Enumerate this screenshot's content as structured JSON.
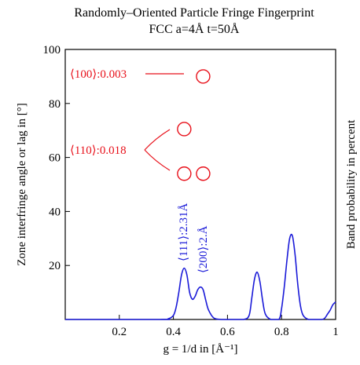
{
  "chart_data": {
    "type": "line",
    "title": "Randomly–Oriented Particle Fringe Fingerprint",
    "subtitle": "FCC a=4Å t=50Å",
    "xlabel": "g = 1/d in [Å⁻¹]",
    "ylabel": "Zone interfringe angle or lag in [°]",
    "y2label": "Band probability in percent",
    "xlim": [
      0,
      1
    ],
    "ylim": [
      0,
      100
    ],
    "xticks": [
      {
        "value": 0.2,
        "label": "0.2"
      },
      {
        "value": 0.4,
        "label": "0.4"
      },
      {
        "value": 0.6,
        "label": "0.6"
      },
      {
        "value": 0.8,
        "label": "0.8"
      },
      {
        "value": 1.0,
        "label": "1"
      }
    ],
    "yticks": [
      {
        "value": 20,
        "label": "20"
      },
      {
        "value": 40,
        "label": "40"
      },
      {
        "value": 60,
        "label": "60"
      },
      {
        "value": 80,
        "label": "80"
      },
      {
        "value": 100,
        "label": "100"
      }
    ],
    "grid": false,
    "series": [
      {
        "color": "#1a1ad8",
        "x": [
          0.0,
          0.35,
          0.38,
          0.4,
          0.41,
          0.42,
          0.43,
          0.44,
          0.45,
          0.46,
          0.47,
          0.48,
          0.49,
          0.5,
          0.51,
          0.52,
          0.53,
          0.55,
          0.58,
          0.62,
          0.66,
          0.68,
          0.69,
          0.7,
          0.71,
          0.72,
          0.73,
          0.74,
          0.76,
          0.79,
          0.8,
          0.81,
          0.82,
          0.83,
          0.84,
          0.85,
          0.86,
          0.87,
          0.88,
          0.9,
          0.93,
          0.95,
          0.96,
          0.97,
          0.98,
          0.99,
          1.0
        ],
        "y": [
          0,
          0,
          0.2,
          1.5,
          4.5,
          10,
          16.5,
          19,
          16.5,
          10,
          7.5,
          8.5,
          11,
          12,
          11,
          7,
          3.5,
          0.5,
          0,
          0,
          0,
          1.5,
          8,
          15,
          17.5,
          14,
          7,
          2,
          0,
          0,
          4,
          12,
          22,
          30,
          31,
          24,
          13,
          5,
          1.5,
          0,
          0,
          0,
          0.5,
          2,
          3.5,
          5.5,
          6.5
        ]
      }
    ],
    "markers": [
      {
        "x": 0.51,
        "y": 90,
        "color": "#e8101a",
        "shape": "open-circle"
      },
      {
        "x": 0.44,
        "y": 70.5,
        "color": "#e8101a",
        "shape": "open-circle"
      },
      {
        "x": 0.44,
        "y": 54,
        "color": "#e8101a",
        "shape": "open-circle"
      },
      {
        "x": 0.51,
        "y": 54,
        "color": "#e8101a",
        "shape": "open-circle"
      }
    ],
    "annotations": {
      "red": [
        {
          "text": "⟨100⟩:0.003",
          "color": "#e8101a"
        },
        {
          "text": "⟨110⟩:0.018",
          "color": "#e8101a"
        }
      ],
      "blue": [
        {
          "text": "⟨111⟩:2.31Å",
          "color": "#1a1ad8"
        },
        {
          "text": "⟨200⟩:2.Å",
          "color": "#1a1ad8"
        }
      ]
    }
  }
}
